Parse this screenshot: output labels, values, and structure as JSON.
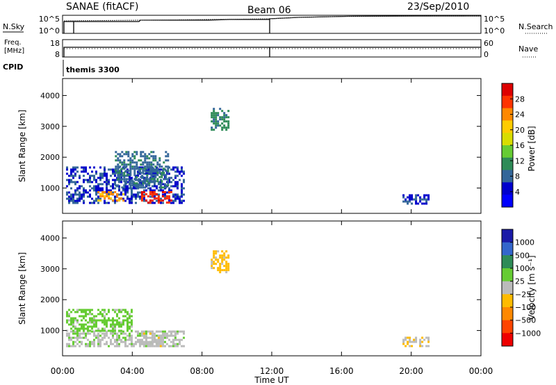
{
  "header": {
    "title": "SANAE (fitACF)",
    "beam": "Beam 06",
    "date": "23/Sep/2010"
  },
  "top_panels": {
    "nsky_label": "N.Sky",
    "nsky_ticks": [
      "10^5",
      "10^0"
    ],
    "nsearch_label": "N.Search",
    "nsearch_ticks": [
      "10^5",
      "10^0"
    ],
    "freq_label_1": "Freq.",
    "freq_label_2": "[MHz]",
    "freq_ticks": [
      "18",
      "8"
    ],
    "nave_label": "Nave",
    "nave_ticks": [
      "60",
      "0"
    ],
    "cpid_label": "CPID",
    "cpid_value": "themis 3300"
  },
  "power_colorbar": {
    "label": "Power [dB]",
    "ticks": [
      "28",
      "24",
      "20",
      "16",
      "12",
      "8",
      "4"
    ],
    "colors": [
      "#dd0000",
      "#ff3300",
      "#ff8800",
      "#ffcc00",
      "#d8dd00",
      "#66cc33",
      "#2e8b57",
      "#336699",
      "#0000cc",
      "#0000ff"
    ]
  },
  "velocity_colorbar": {
    "label": "Velocity [m s⁻¹]",
    "ticks": [
      "1000",
      "500",
      "100",
      "25",
      "−25",
      "−100",
      "−500",
      "−1000"
    ],
    "colors": [
      "#1a1aa8",
      "#3366cc",
      "#2e8b57",
      "#66cc33",
      "#bbbbbb",
      "#ffbb00",
      "#ff8800",
      "#ff4400",
      "#ee0000"
    ]
  },
  "chart_data": [
    {
      "type": "heatmap",
      "panel": "power",
      "ylabel": "Slant Range [km]",
      "xlabel": "",
      "yticks": [
        1000,
        2000,
        3000,
        4000
      ],
      "ylim": [
        180,
        4550
      ],
      "xlim": [
        0,
        24
      ],
      "xticks": [
        "00:00",
        "04:00",
        "08:00",
        "12:00",
        "16:00",
        "20:00",
        "00:00"
      ],
      "colorbar": "Power [dB]",
      "clim": [
        0,
        30
      ],
      "regions": [
        {
          "t": [
            0.2,
            7.0
          ],
          "range": [
            500,
            1700
          ],
          "value": 6
        },
        {
          "t": [
            2.0,
            3.5
          ],
          "range": [
            600,
            900
          ],
          "value": 22
        },
        {
          "t": [
            4.5,
            6.2
          ],
          "range": [
            550,
            900
          ],
          "value": 26
        },
        {
          "t": [
            3.0,
            6.0
          ],
          "range": [
            1000,
            2200
          ],
          "value": 8
        },
        {
          "t": [
            8.5,
            9.5
          ],
          "range": [
            2900,
            3600
          ],
          "value": 10
        },
        {
          "t": [
            19.5,
            21.0
          ],
          "range": [
            500,
            800
          ],
          "value": 5
        }
      ]
    },
    {
      "type": "heatmap",
      "panel": "velocity",
      "ylabel": "Slant Range [km]",
      "xlabel": "Time UT",
      "yticks": [
        1000,
        2000,
        3000,
        4000
      ],
      "ylim": [
        180,
        4550
      ],
      "xlim": [
        0,
        24
      ],
      "xticks": [
        "00:00",
        "04:00",
        "08:00",
        "12:00",
        "16:00",
        "20:00",
        "00:00"
      ],
      "colorbar": "Velocity [m s⁻¹]",
      "clim": [
        -1000,
        1000
      ],
      "regions": [
        {
          "t": [
            0.2,
            7.0
          ],
          "range": [
            500,
            1000
          ],
          "value": 50
        },
        {
          "t": [
            0.2,
            4.0
          ],
          "range": [
            1000,
            1700
          ],
          "value": 200
        },
        {
          "t": [
            4.5,
            6.5
          ],
          "range": [
            500,
            1000
          ],
          "value": 0
        },
        {
          "t": [
            8.5,
            9.5
          ],
          "range": [
            2900,
            3600
          ],
          "value": -200
        },
        {
          "t": [
            19.5,
            21.0
          ],
          "range": [
            500,
            800
          ],
          "value": -80
        }
      ]
    }
  ]
}
